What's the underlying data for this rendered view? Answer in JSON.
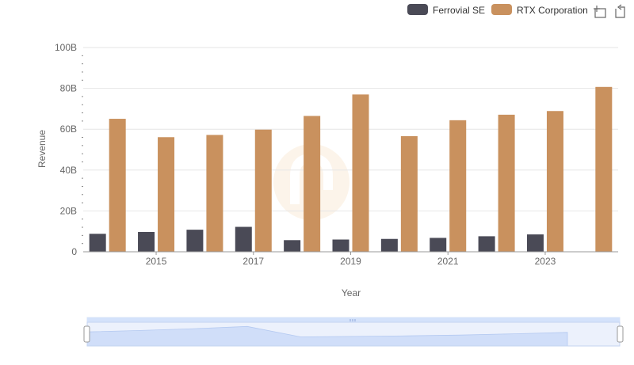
{
  "chart_data": {
    "type": "bar",
    "xlabel": "Year",
    "ylabel": "Revenue",
    "ylim": [
      0,
      100
    ],
    "y_ticks": [
      "0",
      "20B",
      "40B",
      "60B",
      "80B",
      "100B"
    ],
    "x_ticks": [
      "2015",
      "2017",
      "2019",
      "2021",
      "2023"
    ],
    "years": [
      2014,
      2015,
      2016,
      2017,
      2018,
      2019,
      2020,
      2021,
      2022,
      2023,
      2024
    ],
    "legend_position": "top-right",
    "grid": true,
    "series": [
      {
        "name": "Ferrovial SE",
        "color": "#4a4a56",
        "values": [
          8.8,
          9.7,
          10.8,
          12.2,
          5.7,
          6.0,
          6.3,
          6.8,
          7.6,
          8.5,
          null
        ]
      },
      {
        "name": "RTX Corporation",
        "color": "#c9915e",
        "values": [
          65.1,
          56.1,
          57.2,
          59.8,
          66.5,
          77.0,
          56.6,
          64.4,
          67.1,
          68.9,
          80.7
        ]
      }
    ]
  },
  "toolbar": {
    "zoom_icon": "zoom-select-icon",
    "reset_icon": "zoom-reset-icon"
  },
  "slider": {
    "fill_color": "#d4e2fb",
    "border_color": "#c5d4f0"
  }
}
